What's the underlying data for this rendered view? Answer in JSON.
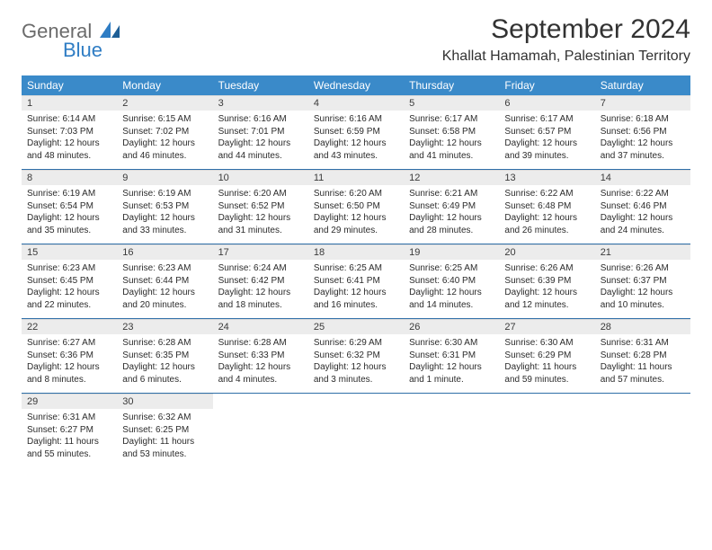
{
  "brand": {
    "general": "General",
    "blue": "Blue"
  },
  "title": "September 2024",
  "location": "Khallat Hamamah, Palestinian Territory",
  "colors": {
    "header_bg": "#3a8ac9",
    "daynum_bg": "#ececec",
    "week_border": "#2f6fa8",
    "logo_gray": "#6b6b6b",
    "logo_blue": "#2f7dc4"
  },
  "dayHeaders": [
    "Sunday",
    "Monday",
    "Tuesday",
    "Wednesday",
    "Thursday",
    "Friday",
    "Saturday"
  ],
  "weeks": [
    [
      {
        "n": "1",
        "sr": "Sunrise: 6:14 AM",
        "ss": "Sunset: 7:03 PM",
        "dl": "Daylight: 12 hours and 48 minutes."
      },
      {
        "n": "2",
        "sr": "Sunrise: 6:15 AM",
        "ss": "Sunset: 7:02 PM",
        "dl": "Daylight: 12 hours and 46 minutes."
      },
      {
        "n": "3",
        "sr": "Sunrise: 6:16 AM",
        "ss": "Sunset: 7:01 PM",
        "dl": "Daylight: 12 hours and 44 minutes."
      },
      {
        "n": "4",
        "sr": "Sunrise: 6:16 AM",
        "ss": "Sunset: 6:59 PM",
        "dl": "Daylight: 12 hours and 43 minutes."
      },
      {
        "n": "5",
        "sr": "Sunrise: 6:17 AM",
        "ss": "Sunset: 6:58 PM",
        "dl": "Daylight: 12 hours and 41 minutes."
      },
      {
        "n": "6",
        "sr": "Sunrise: 6:17 AM",
        "ss": "Sunset: 6:57 PM",
        "dl": "Daylight: 12 hours and 39 minutes."
      },
      {
        "n": "7",
        "sr": "Sunrise: 6:18 AM",
        "ss": "Sunset: 6:56 PM",
        "dl": "Daylight: 12 hours and 37 minutes."
      }
    ],
    [
      {
        "n": "8",
        "sr": "Sunrise: 6:19 AM",
        "ss": "Sunset: 6:54 PM",
        "dl": "Daylight: 12 hours and 35 minutes."
      },
      {
        "n": "9",
        "sr": "Sunrise: 6:19 AM",
        "ss": "Sunset: 6:53 PM",
        "dl": "Daylight: 12 hours and 33 minutes."
      },
      {
        "n": "10",
        "sr": "Sunrise: 6:20 AM",
        "ss": "Sunset: 6:52 PM",
        "dl": "Daylight: 12 hours and 31 minutes."
      },
      {
        "n": "11",
        "sr": "Sunrise: 6:20 AM",
        "ss": "Sunset: 6:50 PM",
        "dl": "Daylight: 12 hours and 29 minutes."
      },
      {
        "n": "12",
        "sr": "Sunrise: 6:21 AM",
        "ss": "Sunset: 6:49 PM",
        "dl": "Daylight: 12 hours and 28 minutes."
      },
      {
        "n": "13",
        "sr": "Sunrise: 6:22 AM",
        "ss": "Sunset: 6:48 PM",
        "dl": "Daylight: 12 hours and 26 minutes."
      },
      {
        "n": "14",
        "sr": "Sunrise: 6:22 AM",
        "ss": "Sunset: 6:46 PM",
        "dl": "Daylight: 12 hours and 24 minutes."
      }
    ],
    [
      {
        "n": "15",
        "sr": "Sunrise: 6:23 AM",
        "ss": "Sunset: 6:45 PM",
        "dl": "Daylight: 12 hours and 22 minutes."
      },
      {
        "n": "16",
        "sr": "Sunrise: 6:23 AM",
        "ss": "Sunset: 6:44 PM",
        "dl": "Daylight: 12 hours and 20 minutes."
      },
      {
        "n": "17",
        "sr": "Sunrise: 6:24 AM",
        "ss": "Sunset: 6:42 PM",
        "dl": "Daylight: 12 hours and 18 minutes."
      },
      {
        "n": "18",
        "sr": "Sunrise: 6:25 AM",
        "ss": "Sunset: 6:41 PM",
        "dl": "Daylight: 12 hours and 16 minutes."
      },
      {
        "n": "19",
        "sr": "Sunrise: 6:25 AM",
        "ss": "Sunset: 6:40 PM",
        "dl": "Daylight: 12 hours and 14 minutes."
      },
      {
        "n": "20",
        "sr": "Sunrise: 6:26 AM",
        "ss": "Sunset: 6:39 PM",
        "dl": "Daylight: 12 hours and 12 minutes."
      },
      {
        "n": "21",
        "sr": "Sunrise: 6:26 AM",
        "ss": "Sunset: 6:37 PM",
        "dl": "Daylight: 12 hours and 10 minutes."
      }
    ],
    [
      {
        "n": "22",
        "sr": "Sunrise: 6:27 AM",
        "ss": "Sunset: 6:36 PM",
        "dl": "Daylight: 12 hours and 8 minutes."
      },
      {
        "n": "23",
        "sr": "Sunrise: 6:28 AM",
        "ss": "Sunset: 6:35 PM",
        "dl": "Daylight: 12 hours and 6 minutes."
      },
      {
        "n": "24",
        "sr": "Sunrise: 6:28 AM",
        "ss": "Sunset: 6:33 PM",
        "dl": "Daylight: 12 hours and 4 minutes."
      },
      {
        "n": "25",
        "sr": "Sunrise: 6:29 AM",
        "ss": "Sunset: 6:32 PM",
        "dl": "Daylight: 12 hours and 3 minutes."
      },
      {
        "n": "26",
        "sr": "Sunrise: 6:30 AM",
        "ss": "Sunset: 6:31 PM",
        "dl": "Daylight: 12 hours and 1 minute."
      },
      {
        "n": "27",
        "sr": "Sunrise: 6:30 AM",
        "ss": "Sunset: 6:29 PM",
        "dl": "Daylight: 11 hours and 59 minutes."
      },
      {
        "n": "28",
        "sr": "Sunrise: 6:31 AM",
        "ss": "Sunset: 6:28 PM",
        "dl": "Daylight: 11 hours and 57 minutes."
      }
    ],
    [
      {
        "n": "29",
        "sr": "Sunrise: 6:31 AM",
        "ss": "Sunset: 6:27 PM",
        "dl": "Daylight: 11 hours and 55 minutes."
      },
      {
        "n": "30",
        "sr": "Sunrise: 6:32 AM",
        "ss": "Sunset: 6:25 PM",
        "dl": "Daylight: 11 hours and 53 minutes."
      },
      null,
      null,
      null,
      null,
      null
    ]
  ]
}
